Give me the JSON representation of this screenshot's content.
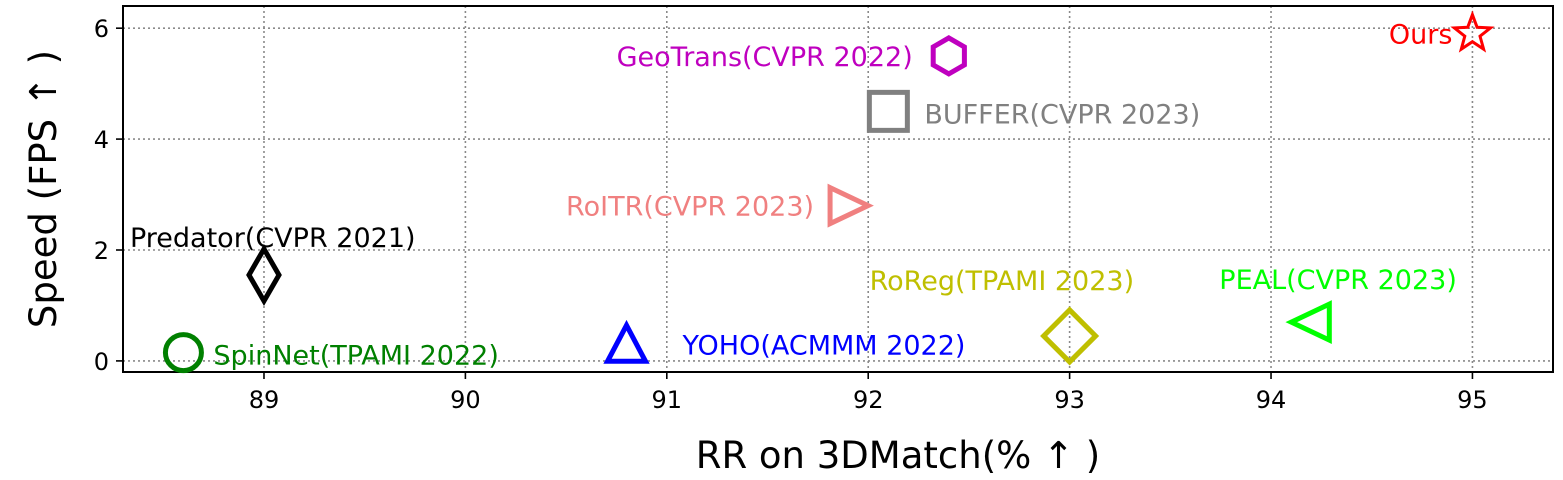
{
  "chart_data": {
    "type": "scatter",
    "title": "",
    "xlabel": "RR on 3DMatch(% ↑ )",
    "ylabel": "Speed (FPS ↑ )",
    "xlim": [
      88.3,
      95.4
    ],
    "ylim": [
      -0.2,
      6.4
    ],
    "xticks": [
      89,
      90,
      91,
      92,
      93,
      94,
      95
    ],
    "yticks": [
      0,
      2,
      4,
      6
    ],
    "grid": true,
    "grid_style": "dotted",
    "legend": "none",
    "points": [
      {
        "label": "Ours",
        "x": 95.0,
        "y": 5.9,
        "marker": "star",
        "color": "#ff0000"
      },
      {
        "label": "GeoTrans(CVPR 2022)",
        "x": 92.4,
        "y": 5.5,
        "marker": "hexagon",
        "color": "#bf00bf"
      },
      {
        "label": "BUFFER(CVPR 2023)",
        "x": 92.1,
        "y": 4.5,
        "marker": "square",
        "color": "#808080"
      },
      {
        "label": "RoITR(CVPR 2023)",
        "x": 91.9,
        "y": 2.8,
        "marker": "triangle-right",
        "color": "#f08080"
      },
      {
        "label": "Predator(CVPR 2021)",
        "x": 89.0,
        "y": 1.55,
        "marker": "thin-diamond",
        "color": "#000000"
      },
      {
        "label": "RoReg(TPAMI 2023)",
        "x": 93.0,
        "y": 0.45,
        "marker": "diamond",
        "color": "#bfbf00"
      },
      {
        "label": "PEAL(CVPR 2023)",
        "x": 94.2,
        "y": 0.7,
        "marker": "triangle-left",
        "color": "#00ff00"
      },
      {
        "label": "YOHO(ACMMM 2022)",
        "x": 90.8,
        "y": 0.3,
        "marker": "triangle-up",
        "color": "#0000ff"
      },
      {
        "label": "SpinNet(TPAMI 2022)",
        "x": 88.6,
        "y": 0.15,
        "marker": "circle",
        "color": "#008000"
      }
    ]
  }
}
